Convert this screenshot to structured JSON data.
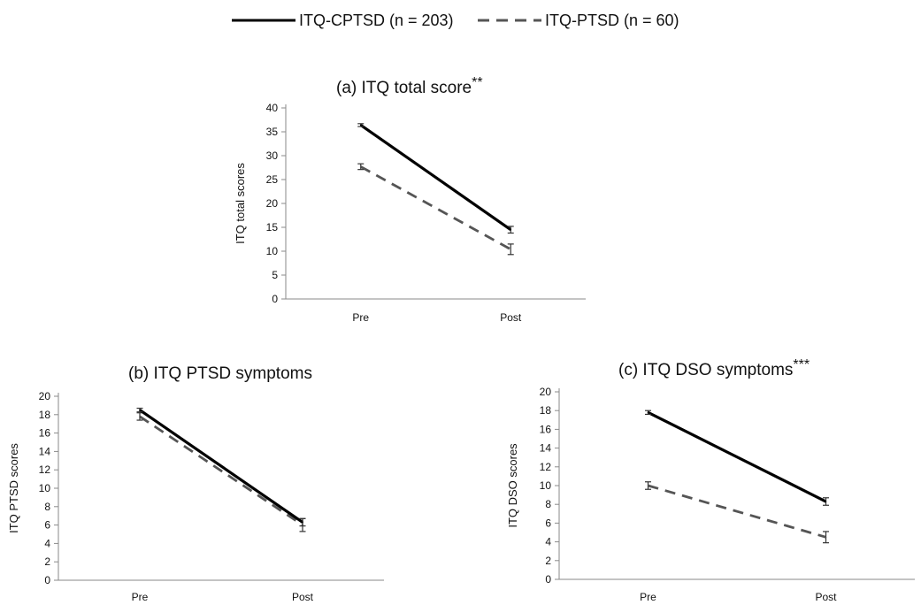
{
  "legend": [
    {
      "name": "ITQ-CPTSD (n = 203)",
      "style": "solid",
      "color": "#000000"
    },
    {
      "name": "ITQ-PTSD (n = 60)",
      "style": "dashed",
      "color": "#555555"
    }
  ],
  "chart_data": [
    {
      "type": "line",
      "title": "(a) ITQ total score",
      "title_suffix": "**",
      "ylabel": "ITQ total scores",
      "xlabel": "",
      "categories": [
        "Pre",
        "Post"
      ],
      "ylim": [
        0,
        40
      ],
      "yticks": [
        0,
        5,
        10,
        15,
        20,
        25,
        30,
        35,
        40
      ],
      "series": [
        {
          "name": "ITQ-CPTSD (n = 203)",
          "values": [
            36.4,
            14.5
          ],
          "errors": [
            0.3,
            0.7
          ]
        },
        {
          "name": "ITQ-PTSD (n = 60)",
          "values": [
            27.7,
            10.4
          ],
          "errors": [
            0.6,
            1.1
          ]
        }
      ]
    },
    {
      "type": "line",
      "title": "(b) ITQ PTSD symptoms",
      "title_suffix": "",
      "ylabel": "ITQ PTSD scores",
      "xlabel": "",
      "categories": [
        "Pre",
        "Post"
      ],
      "ylim": [
        0,
        20
      ],
      "yticks": [
        0,
        2,
        4,
        6,
        8,
        10,
        12,
        14,
        16,
        18,
        20
      ],
      "series": [
        {
          "name": "ITQ-CPTSD (n = 203)",
          "values": [
            18.5,
            6.3
          ],
          "errors": [
            0.2,
            0.4
          ]
        },
        {
          "name": "ITQ-PTSD (n = 60)",
          "values": [
            17.8,
            6.0
          ],
          "errors": [
            0.4,
            0.7
          ]
        }
      ]
    },
    {
      "type": "line",
      "title": "(c) ITQ DSO symptoms",
      "title_suffix": "***",
      "ylabel": "ITQ DSO scores",
      "xlabel": "",
      "categories": [
        "Pre",
        "Post"
      ],
      "ylim": [
        0,
        20
      ],
      "yticks": [
        0,
        2,
        4,
        6,
        8,
        10,
        12,
        14,
        16,
        18,
        20
      ],
      "series": [
        {
          "name": "ITQ-CPTSD (n = 203)",
          "values": [
            17.8,
            8.3
          ],
          "errors": [
            0.2,
            0.4
          ]
        },
        {
          "name": "ITQ-PTSD (n = 60)",
          "values": [
            10.0,
            4.5
          ],
          "errors": [
            0.4,
            0.6
          ]
        }
      ]
    }
  ]
}
